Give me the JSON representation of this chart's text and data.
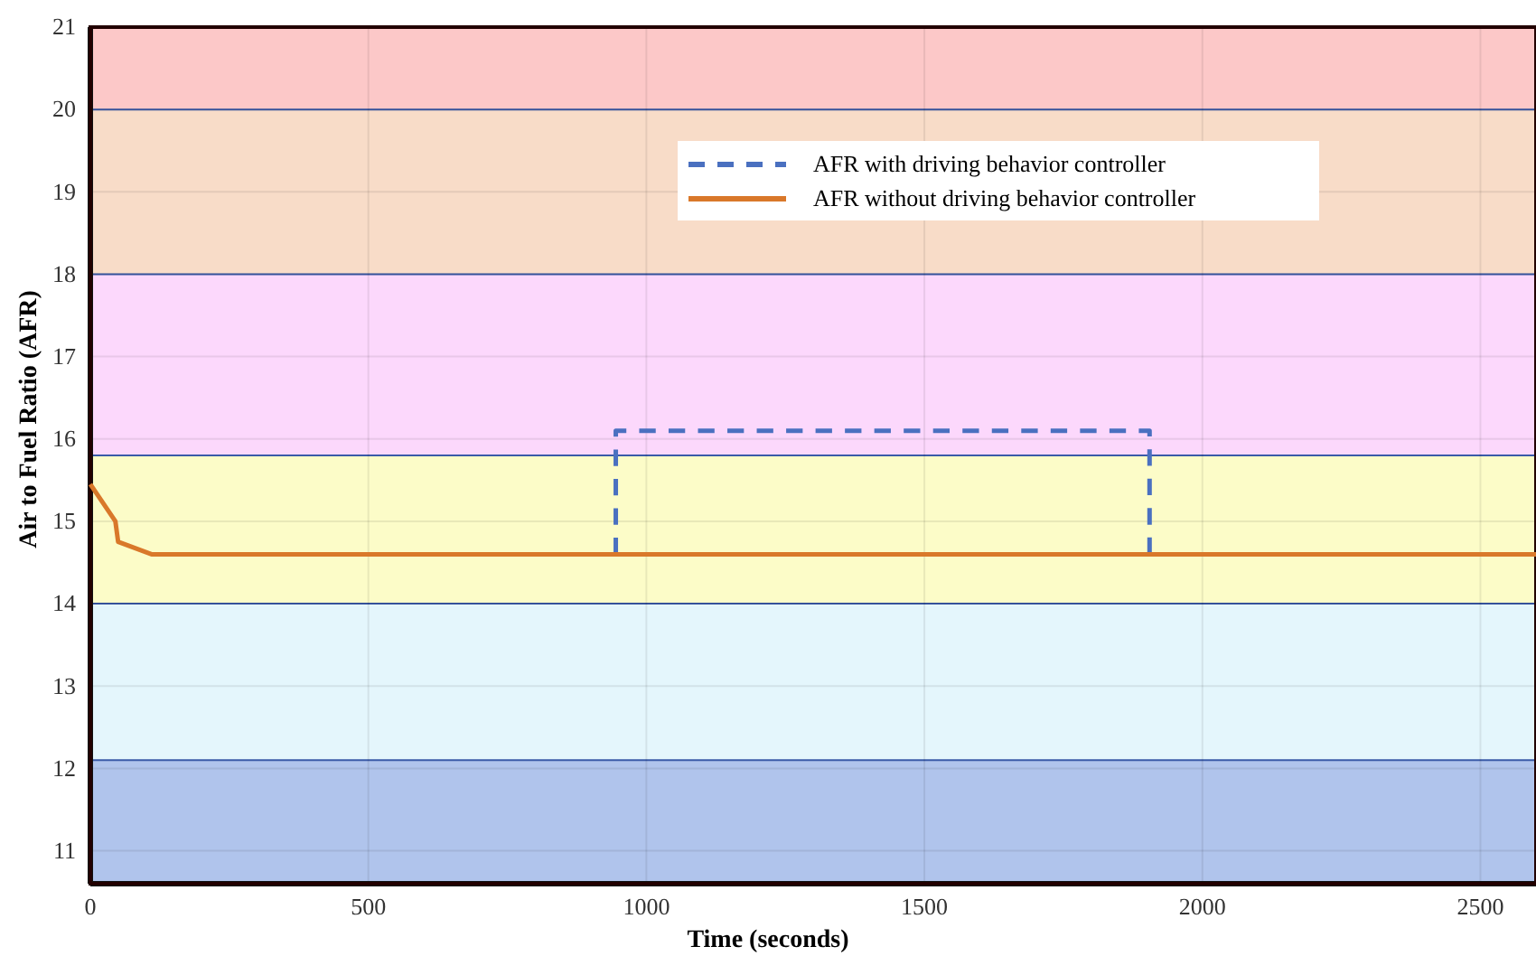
{
  "chart_data": {
    "type": "line",
    "xlabel": "Time (seconds)",
    "ylabel": "Air to Fuel Ratio (AFR)",
    "xlim": [
      0,
      2600
    ],
    "xticks": [
      0,
      500,
      1000,
      1500,
      2000,
      2500
    ],
    "ylim": [
      10.6,
      21
    ],
    "yticks": [
      11,
      12,
      13,
      14,
      15,
      16,
      17,
      18,
      19,
      20,
      21
    ],
    "grid": true,
    "legend": "top",
    "marker": "none",
    "bands": [
      {
        "axis": "y",
        "from": 20,
        "to": 21,
        "color": "#fcc8c8"
      },
      {
        "axis": "y",
        "from": 18,
        "to": 20,
        "color": "#f8dcc8"
      },
      {
        "axis": "y",
        "from": 15.8,
        "to": 18,
        "color": "#fcd8fc"
      },
      {
        "axis": "y",
        "from": 14,
        "to": 15.8,
        "color": "#fcfcc8"
      },
      {
        "axis": "y",
        "from": 12.1,
        "to": 14,
        "color": "#e4f6fc"
      },
      {
        "axis": "y",
        "from": 10.6,
        "to": 12.1,
        "color": "#b0c4ec"
      }
    ],
    "series": [
      {
        "name": "AFR with driving behavior controller",
        "color": "#4a70c0",
        "line_style": "dashed",
        "x": [
          945,
          945,
          1905,
          1905
        ],
        "values": [
          14.6,
          16.1,
          16.1,
          14.6
        ]
      },
      {
        "name": "AFR without driving behavior controller",
        "color": "#d9782a",
        "line_style": "solid",
        "x": [
          0,
          45,
          50,
          110,
          500,
          1000,
          1500,
          2000,
          2600
        ],
        "values": [
          15.45,
          15.0,
          14.75,
          14.6,
          14.6,
          14.6,
          14.6,
          14.6,
          14.6
        ]
      }
    ]
  }
}
